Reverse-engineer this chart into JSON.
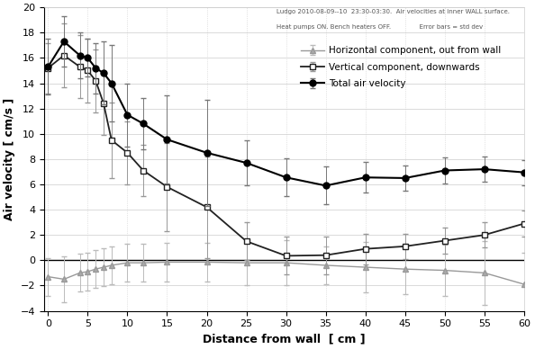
{
  "x": [
    0,
    2,
    4,
    5,
    6,
    7,
    8,
    10,
    12,
    15,
    20,
    25,
    30,
    35,
    40,
    45,
    50,
    55,
    60
  ],
  "total_velocity": [
    15.3,
    17.3,
    16.2,
    16.0,
    15.2,
    14.8,
    14.0,
    11.5,
    10.8,
    9.55,
    8.5,
    7.7,
    6.55,
    5.9,
    6.55,
    6.5,
    7.1,
    7.2,
    6.95
  ],
  "total_velocity_err": [
    2.2,
    2.0,
    1.8,
    1.5,
    2.0,
    2.5,
    3.0,
    2.5,
    2.0,
    3.5,
    4.2,
    1.8,
    1.5,
    1.5,
    1.2,
    1.0,
    1.0,
    1.0,
    1.0
  ],
  "vertical_velocity": [
    15.2,
    16.2,
    15.3,
    15.0,
    14.2,
    12.4,
    9.5,
    8.5,
    7.1,
    5.8,
    4.2,
    1.5,
    0.35,
    0.4,
    0.9,
    1.1,
    1.55,
    2.0,
    2.9
  ],
  "vertical_velocity_err": [
    2.0,
    2.5,
    2.5,
    2.5,
    2.5,
    2.5,
    3.0,
    2.5,
    2.0,
    3.5,
    4.0,
    1.5,
    1.5,
    1.5,
    1.2,
    1.0,
    1.0,
    1.0,
    1.0
  ],
  "horizontal_velocity": [
    -1.3,
    -1.5,
    -1.0,
    -0.9,
    -0.7,
    -0.55,
    -0.4,
    -0.2,
    -0.2,
    -0.15,
    -0.15,
    -0.2,
    -0.2,
    -0.4,
    -0.55,
    -0.7,
    -0.8,
    -1.0,
    -1.9
  ],
  "horizontal_velocity_err": [
    1.5,
    1.8,
    1.5,
    1.5,
    1.5,
    1.5,
    1.5,
    1.5,
    1.5,
    1.5,
    1.5,
    1.8,
    1.8,
    1.5,
    2.0,
    2.0,
    2.0,
    2.5,
    2.5
  ],
  "xlim": [
    -0.5,
    60
  ],
  "ylim": [
    -4,
    20
  ],
  "xlabel": "Distance from wall  [ cm ]",
  "ylabel": "Air velocity [ cm/s ]",
  "annotation_line1": "Ludgo 2010-08-09--10  23:30-03:30.  Air velocities at inner WALL surface.",
  "annotation_line2": "Heat pumps ON. Bench heaters OFF.              Error bars = std dev",
  "legend_total": "Total air velocity",
  "legend_vertical": "Vertical component, downwards",
  "legend_horizontal": "Horizontal component, out from wall",
  "grid_color": "#cccccc",
  "line_color_total": "#000000",
  "line_color_vertical": "#222222",
  "line_color_horizontal": "#999999",
  "xticks": [
    0,
    5,
    10,
    15,
    20,
    25,
    30,
    35,
    40,
    45,
    50,
    55,
    60
  ],
  "yticks": [
    -4,
    -2,
    0,
    2,
    4,
    6,
    8,
    10,
    12,
    14,
    16,
    18,
    20
  ],
  "bg_color": "#ffffff"
}
